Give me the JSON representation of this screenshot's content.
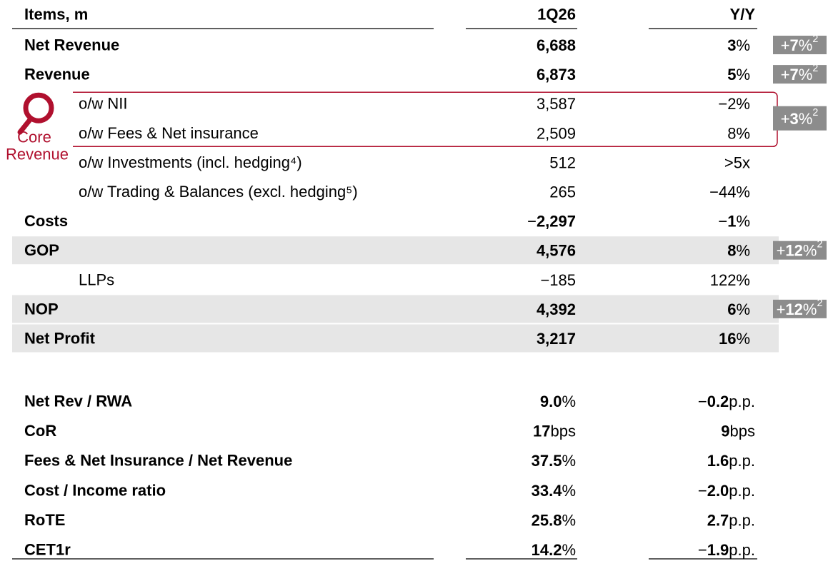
{
  "header": {
    "label": "Items, m",
    "value": "1Q26",
    "yoy": "Y/Y"
  },
  "rows": [
    {
      "label": "Net Revenue",
      "bold": true,
      "value": [
        {
          "text": "6,688",
          "bold": true
        }
      ],
      "yoy": [
        {
          "text": "3",
          "bold": true
        },
        {
          "text": "%"
        }
      ],
      "badge": [
        {
          "text": "+"
        },
        {
          "text": "7",
          "bold": true
        },
        {
          "text": "%"
        },
        {
          "text": "2",
          "sup": true
        }
      ]
    },
    {
      "label": "Revenue",
      "bold": true,
      "value": [
        {
          "text": "6,873",
          "bold": true
        }
      ],
      "yoy": [
        {
          "text": "5",
          "bold": true
        },
        {
          "text": "%"
        }
      ],
      "badge": [
        {
          "text": "+"
        },
        {
          "text": "7",
          "bold": true
        },
        {
          "text": "%"
        },
        {
          "text": "2",
          "sup": true
        }
      ]
    },
    {
      "label": "o/w NII",
      "level": 1,
      "value": [
        {
          "text": "3,587"
        }
      ],
      "yoy": [
        {
          "text": "−2%"
        }
      ]
    },
    {
      "label": "o/w Fees & Net insurance",
      "level": 1,
      "value": [
        {
          "text": "2,509"
        }
      ],
      "yoy": [
        {
          "text": "8%"
        }
      ]
    },
    {
      "label": "o/w Investments (incl. hedging⁴)",
      "level": 1,
      "value": [
        {
          "text": "512"
        }
      ],
      "yoy": [
        {
          "text": ">5x"
        }
      ]
    },
    {
      "label": "o/w Trading & Balances (excl. hedging⁵)",
      "level": 1,
      "value": [
        {
          "text": "265"
        }
      ],
      "yoy": [
        {
          "text": "−44%"
        }
      ]
    },
    {
      "label": "Costs",
      "bold": true,
      "value": [
        {
          "text": "−"
        },
        {
          "text": "2,297",
          "bold": true
        }
      ],
      "yoy": [
        {
          "text": "−"
        },
        {
          "text": "1",
          "bold": true
        },
        {
          "text": "%"
        }
      ]
    },
    {
      "label": "GOP",
      "bold": true,
      "highlight": true,
      "value": [
        {
          "text": "4,576",
          "bold": true
        }
      ],
      "yoy": [
        {
          "text": "8",
          "bold": true
        },
        {
          "text": "%"
        }
      ],
      "badge": [
        {
          "text": "+"
        },
        {
          "text": "12",
          "bold": true
        },
        {
          "text": "%"
        },
        {
          "text": "2",
          "sup": true
        }
      ]
    },
    {
      "label": "LLPs",
      "level": 1,
      "value": [
        {
          "text": "−185"
        }
      ],
      "yoy": [
        {
          "text": "122%"
        }
      ]
    },
    {
      "label": "NOP",
      "bold": true,
      "highlight": true,
      "value": [
        {
          "text": "4,392",
          "bold": true
        }
      ],
      "yoy": [
        {
          "text": "6",
          "bold": true
        },
        {
          "text": "%"
        }
      ],
      "badge": [
        {
          "text": "+"
        },
        {
          "text": "12",
          "bold": true
        },
        {
          "text": "%"
        },
        {
          "text": "2",
          "sup": true
        }
      ]
    },
    {
      "label": "Net Profit",
      "bold": true,
      "highlight": true,
      "value": [
        {
          "text": "3,217",
          "bold": true
        }
      ],
      "yoy": [
        {
          "text": "16",
          "bold": true
        },
        {
          "text": "%"
        }
      ]
    }
  ],
  "core_group": {
    "labels": [
      "Core",
      "Revenue"
    ],
    "rows": [
      2,
      3
    ],
    "badge": [
      {
        "text": "+"
      },
      {
        "text": "3",
        "bold": true
      },
      {
        "text": "%"
      },
      {
        "text": "2",
        "sup": true
      }
    ]
  },
  "ratios": [
    {
      "label": "Net Rev / RWA",
      "value": [
        {
          "text": "9.0",
          "bold": true
        },
        {
          "text": "%"
        }
      ],
      "yoy": [
        {
          "text": "−"
        },
        {
          "text": "0.2",
          "bold": true
        },
        {
          "text": "p.p."
        }
      ]
    },
    {
      "label": "CoR",
      "value": [
        {
          "text": "17",
          "bold": true
        },
        {
          "text": "bps"
        }
      ],
      "yoy": [
        {
          "text": "9",
          "bold": true
        },
        {
          "text": "bps"
        }
      ]
    },
    {
      "label": "Fees & Net Insurance / Net Revenue",
      "value": [
        {
          "text": "37.5",
          "bold": true
        },
        {
          "text": "%"
        }
      ],
      "yoy": [
        {
          "text": "1.6",
          "bold": true
        },
        {
          "text": "p.p."
        }
      ]
    },
    {
      "label": "Cost / Income ratio",
      "value": [
        {
          "text": "33.4",
          "bold": true
        },
        {
          "text": "%"
        }
      ],
      "yoy": [
        {
          "text": "−"
        },
        {
          "text": "2.0",
          "bold": true
        },
        {
          "text": "p.p."
        }
      ]
    },
    {
      "label": "RoTE",
      "value": [
        {
          "text": "25.8",
          "bold": true
        },
        {
          "text": "%"
        }
      ],
      "yoy": [
        {
          "text": "2.7",
          "bold": true
        },
        {
          "text": "p.p."
        }
      ]
    },
    {
      "label": "CET1r",
      "value": [
        {
          "text": "14.2",
          "bold": true
        },
        {
          "text": "%"
        }
      ],
      "yoy": [
        {
          "text": "−"
        },
        {
          "text": "1.9",
          "bold": true
        },
        {
          "text": "p.p."
        }
      ]
    }
  ]
}
